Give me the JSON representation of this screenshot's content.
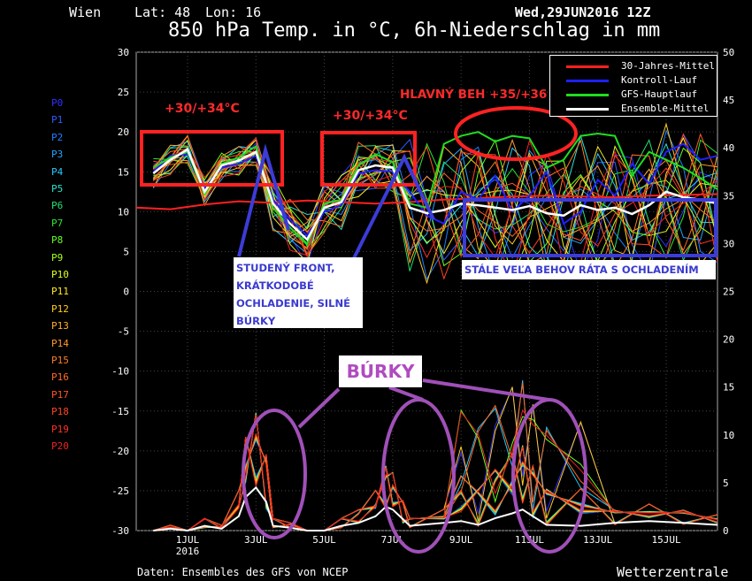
{
  "header": {
    "station": "Wien",
    "lat_label": "Lat: 48",
    "lon_label": "Lon: 16",
    "run": "Wed,29JUN2016 12Z",
    "title": "850 hPa Temp. in °C, 6h-Niederschlag in mm"
  },
  "footer": {
    "source": "Daten: Ensembles des GFS von NCEP",
    "brand": "Wetterzentrale"
  },
  "members": [
    {
      "label": "P0",
      "color": "#3030ff"
    },
    {
      "label": "P1",
      "color": "#2f5bff"
    },
    {
      "label": "P2",
      "color": "#1f7fff"
    },
    {
      "label": "P3",
      "color": "#22a5ff"
    },
    {
      "label": "P4",
      "color": "#26c8ff"
    },
    {
      "label": "P5",
      "color": "#2ae0d0"
    },
    {
      "label": "P6",
      "color": "#22e070"
    },
    {
      "label": "P7",
      "color": "#29e82f"
    },
    {
      "label": "P8",
      "color": "#66ff22"
    },
    {
      "label": "P9",
      "color": "#a8ff22"
    },
    {
      "label": "P10",
      "color": "#e0ff20"
    },
    {
      "label": "P11",
      "color": "#ffe820"
    },
    {
      "label": "P12",
      "color": "#ffcb22"
    },
    {
      "label": "P13",
      "color": "#ffb025"
    },
    {
      "label": "P14",
      "color": "#ff9828"
    },
    {
      "label": "P15",
      "color": "#ff7f22"
    },
    {
      "label": "P16",
      "color": "#ff6a22"
    },
    {
      "label": "P17",
      "color": "#ff5522"
    },
    {
      "label": "P18",
      "color": "#ff4222"
    },
    {
      "label": "P19",
      "color": "#ff3022"
    },
    {
      "label": "P20",
      "color": "#ee2020"
    }
  ],
  "annotations": {
    "heat1": "+30/+34°C",
    "heat2": "+30/+34°C",
    "main_run": "HLAVNÝ BEH +35/+36",
    "front_lines": [
      "STUDENÝ FRONT,",
      "KRÁTKODOBÉ",
      "OCHLADENIE, SILNÉ",
      "BÚRKY"
    ],
    "cooling": "STÁLE VEĽA BEHOV RÁTA S OCHLADENÍM",
    "storms": "BÚRKY"
  },
  "chart_data": {
    "type": "line",
    "title": "850 hPa Temp. in °C, 6h-Niederschlag in mm",
    "y_left": {
      "range": [
        -30,
        30
      ],
      "ticks": [
        30,
        25,
        20,
        15,
        10,
        5,
        0,
        -5,
        -10,
        -15,
        -20,
        -25,
        -30
      ]
    },
    "y_right": {
      "range": [
        0,
        50
      ],
      "ticks": [
        50,
        45,
        40,
        35,
        30,
        25,
        20,
        15,
        10,
        5,
        0
      ]
    },
    "x": {
      "range": [
        0,
        17
      ],
      "ticks": [
        {
          "v": 1.5,
          "label": "1JUL",
          "sub": "2016"
        },
        {
          "v": 3.5,
          "label": "3JUL",
          "sub": ""
        },
        {
          "v": 5.5,
          "label": "5JUL",
          "sub": ""
        },
        {
          "v": 7.5,
          "label": "7JUL",
          "sub": ""
        },
        {
          "v": 9.5,
          "label": "9JUL",
          "sub": ""
        },
        {
          "v": 11.5,
          "label": "11JUL",
          "sub": ""
        },
        {
          "v": 13.5,
          "label": "13JUL",
          "sub": ""
        },
        {
          "v": 15.5,
          "label": "15JUL",
          "sub": ""
        }
      ]
    },
    "legend": {
      "position": "top-right",
      "entries": [
        {
          "name": "30-Jahres-Mittel",
          "color": "#ff2020"
        },
        {
          "name": "Kontroll-Lauf",
          "color": "#2020ff"
        },
        {
          "name": "GFS-Hauptlauf",
          "color": "#20dd20"
        },
        {
          "name": "Ensemble-Mittel",
          "color": "#ffffff"
        }
      ]
    },
    "climatology": [
      [
        0,
        10.5
      ],
      [
        1,
        10.3
      ],
      [
        2,
        10.9
      ],
      [
        3,
        11.3
      ],
      [
        4,
        11.1
      ],
      [
        5,
        11.4
      ],
      [
        6,
        11.2
      ],
      [
        7,
        11.0
      ],
      [
        8,
        11.2
      ],
      [
        9,
        11.5
      ],
      [
        10,
        11.7
      ],
      [
        11,
        11.9
      ],
      [
        12,
        12.0
      ],
      [
        13,
        11.9
      ],
      [
        14,
        11.8
      ],
      [
        15,
        12.0
      ],
      [
        16,
        12.1
      ],
      [
        17,
        12.2
      ]
    ],
    "ensemble_mean_temp": [
      [
        0.5,
        14.8
      ],
      [
        1,
        16.5
      ],
      [
        1.5,
        17.8
      ],
      [
        2,
        12.5
      ],
      [
        2.5,
        15.8
      ],
      [
        3,
        16.4
      ],
      [
        3.5,
        17.5
      ],
      [
        4,
        11.0
      ],
      [
        4.5,
        8.5
      ],
      [
        5,
        6.5
      ],
      [
        5.5,
        10.5
      ],
      [
        6,
        11.2
      ],
      [
        6.5,
        15.2
      ],
      [
        7,
        15.8
      ],
      [
        7.5,
        15.5
      ],
      [
        8,
        10.5
      ],
      [
        8.5,
        9.8
      ],
      [
        9,
        10.2
      ],
      [
        9.5,
        11.0
      ],
      [
        10,
        10.8
      ],
      [
        10.5,
        10.5
      ],
      [
        11,
        10.2
      ],
      [
        11.5,
        10.7
      ],
      [
        12,
        9.8
      ],
      [
        12.5,
        9.5
      ],
      [
        13,
        10.8
      ],
      [
        13.5,
        10.2
      ],
      [
        14,
        10.5
      ],
      [
        14.5,
        9.7
      ],
      [
        15,
        10.8
      ],
      [
        15.5,
        12.5
      ],
      [
        16,
        11.8
      ],
      [
        16.5,
        11.5
      ],
      [
        17,
        11.0
      ]
    ],
    "main_run_temp": [
      [
        0.5,
        15.5
      ],
      [
        1,
        16.8
      ],
      [
        1.5,
        17.5
      ],
      [
        2,
        12.2
      ],
      [
        2.5,
        16.0
      ],
      [
        3,
        16.8
      ],
      [
        3.5,
        18.2
      ],
      [
        4,
        10.5
      ],
      [
        4.5,
        8.0
      ],
      [
        5,
        6.0
      ],
      [
        5.5,
        11.0
      ],
      [
        6,
        11.5
      ],
      [
        6.5,
        15.8
      ],
      [
        7,
        17.2
      ],
      [
        7.5,
        16.2
      ],
      [
        8,
        11.0
      ],
      [
        8.5,
        10.5
      ],
      [
        9,
        18.5
      ],
      [
        9.5,
        19.5
      ],
      [
        10,
        20.0
      ],
      [
        10.5,
        18.8
      ],
      [
        11,
        19.5
      ],
      [
        11.5,
        19.2
      ],
      [
        12,
        15.5
      ],
      [
        12.5,
        16.5
      ],
      [
        13,
        19.5
      ],
      [
        13.5,
        19.8
      ],
      [
        14,
        19.5
      ],
      [
        14.5,
        14.5
      ],
      [
        15,
        17.5
      ],
      [
        15.5,
        16.5
      ],
      [
        16,
        15.5
      ],
      [
        16.5,
        14.2
      ],
      [
        17,
        12.8
      ]
    ],
    "control_run_temp": [
      [
        0.5,
        15.0
      ],
      [
        1,
        17.0
      ],
      [
        1.5,
        17.2
      ],
      [
        2,
        13.0
      ],
      [
        2.5,
        15.5
      ],
      [
        3,
        16.0
      ],
      [
        3.5,
        17.0
      ],
      [
        4,
        11.5
      ],
      [
        4.5,
        9.0
      ],
      [
        5,
        7.0
      ],
      [
        5.5,
        10.0
      ],
      [
        6,
        10.8
      ],
      [
        6.5,
        14.8
      ],
      [
        7,
        15.2
      ],
      [
        7.5,
        15.0
      ],
      [
        8,
        12.5
      ],
      [
        8.5,
        9.5
      ],
      [
        9,
        8.5
      ],
      [
        9.5,
        12.5
      ],
      [
        10,
        11.5
      ],
      [
        10.5,
        14.5
      ],
      [
        11,
        10.0
      ],
      [
        11.5,
        12.0
      ],
      [
        12,
        15.0
      ],
      [
        12.5,
        8.5
      ],
      [
        13,
        10.0
      ],
      [
        13.5,
        14.0
      ],
      [
        14,
        12.0
      ],
      [
        14.5,
        16.0
      ],
      [
        15,
        13.5
      ],
      [
        15.5,
        17.5
      ],
      [
        16,
        18.5
      ],
      [
        16.5,
        16.5
      ],
      [
        17,
        17.0
      ]
    ],
    "precip_mean_mm": [
      [
        0.5,
        0
      ],
      [
        1,
        0.2
      ],
      [
        1.5,
        0
      ],
      [
        2,
        0.5
      ],
      [
        2.5,
        0.2
      ],
      [
        3,
        1.5
      ],
      [
        3.2,
        3.5
      ],
      [
        3.5,
        4.5
      ],
      [
        3.8,
        3.0
      ],
      [
        4,
        0.5
      ],
      [
        4.5,
        0.3
      ],
      [
        5,
        0
      ],
      [
        5.5,
        0
      ],
      [
        6,
        0.5
      ],
      [
        6.5,
        0.8
      ],
      [
        7,
        1.5
      ],
      [
        7.3,
        2.5
      ],
      [
        7.5,
        2.2
      ],
      [
        7.8,
        1.2
      ],
      [
        8,
        0.5
      ],
      [
        9,
        0.8
      ],
      [
        9.5,
        1.0
      ],
      [
        10,
        0.6
      ],
      [
        10.5,
        1.3
      ],
      [
        11,
        1.8
      ],
      [
        11.3,
        2.2
      ],
      [
        11.6,
        1.5
      ],
      [
        12,
        0.6
      ],
      [
        13,
        0.5
      ],
      [
        14,
        0.8
      ],
      [
        15,
        1.0
      ],
      [
        16,
        0.8
      ],
      [
        17,
        0.6
      ]
    ]
  }
}
